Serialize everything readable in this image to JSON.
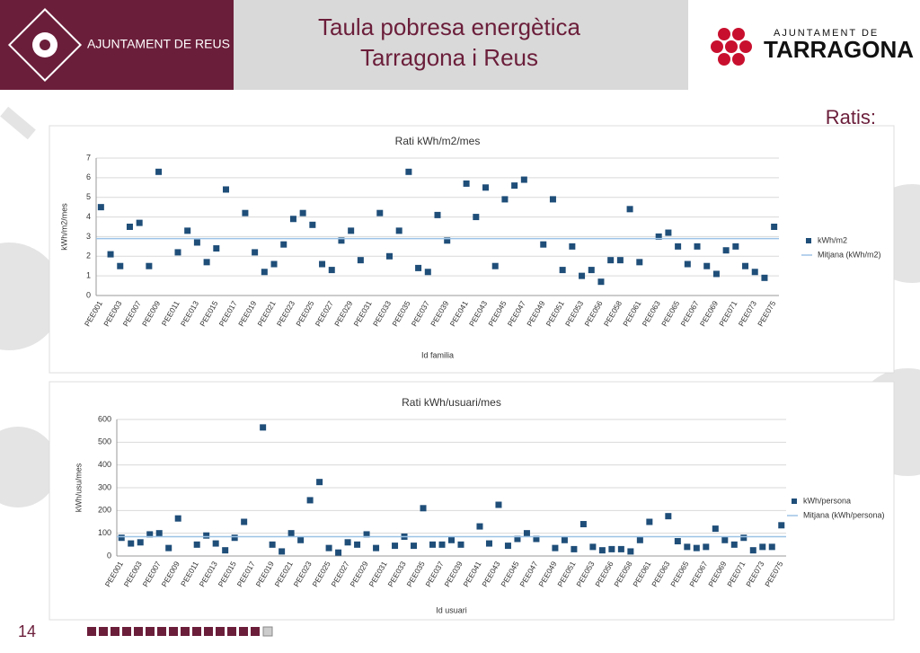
{
  "header": {
    "left_logo_text": "AJUNTAMENT DE REUS",
    "title_line1": "Taula pobresa energètica",
    "title_line2": "Tarragona i Reus",
    "right_logo_small": "AJUNTAMENT DE",
    "right_logo_big": "TARRAGONA"
  },
  "section_label": "Ratis:",
  "page_number": "14",
  "chart_data": [
    {
      "type": "scatter",
      "title": "Rati kWh/m2/mes",
      "x_label": "Id familia",
      "y_label": "kWh/m2/mes",
      "categories": [
        "PEE001",
        null,
        "PEE003",
        null,
        "PEE007",
        null,
        "PEE009",
        null,
        "PEE011",
        null,
        "PEE013",
        null,
        "PEE015",
        null,
        "PEE017",
        null,
        "PEE019",
        null,
        "PEE021",
        null,
        "PEE023",
        null,
        "PEE025",
        null,
        "PEE027",
        null,
        "PEE029",
        null,
        "PEE031",
        null,
        "PEE033",
        null,
        "PEE035",
        null,
        "PEE037",
        null,
        "PEE039",
        null,
        "PEE041",
        null,
        "PEE043",
        null,
        "PEE045",
        null,
        "PEE047",
        null,
        "PEE049",
        null,
        "PEE051",
        null,
        "PEE053",
        null,
        "PEE056",
        null,
        "PEE058",
        null,
        "PEE061",
        null,
        "PEE063",
        null,
        "PEE065",
        null,
        "PEE067",
        null,
        "PEE069",
        null,
        "PEE071",
        null,
        "PEE073",
        null,
        "PEE075"
      ],
      "series": [
        {
          "name": "kWh/m2",
          "color": "#1f4e79",
          "values": [
            4.5,
            2.1,
            1.5,
            3.5,
            3.7,
            1.5,
            6.3,
            null,
            2.2,
            3.3,
            2.7,
            1.7,
            2.4,
            5.4,
            null,
            4.2,
            2.2,
            1.2,
            1.6,
            2.6,
            3.9,
            4.2,
            3.6,
            1.6,
            1.3,
            2.8,
            3.3,
            1.8,
            null,
            4.2,
            2.0,
            3.3,
            6.3,
            1.4,
            1.2,
            4.1,
            2.8,
            null,
            5.7,
            4.0,
            5.5,
            1.5,
            4.9,
            5.6,
            5.9,
            null,
            2.6,
            4.9,
            1.3,
            2.5,
            1.0,
            1.3,
            0.7,
            1.8,
            1.8,
            4.4,
            1.7,
            null,
            3.0,
            3.2,
            2.5,
            1.6,
            2.5,
            1.5,
            1.1,
            2.3,
            2.5,
            1.5,
            1.2,
            0.9,
            3.5
          ]
        },
        {
          "name": "Mitjana (kWh/m2)",
          "color": "#9dc3e6",
          "value": 2.9
        }
      ],
      "ylim": [
        0,
        7
      ],
      "yticks": [
        0,
        1,
        2,
        3,
        4,
        5,
        6,
        7
      ],
      "grid": true,
      "legend": "right"
    },
    {
      "type": "scatter",
      "title": "Rati kWh/usuari/mes",
      "x_label": "Id usuari",
      "y_label": "kWh/usu/mes",
      "categories": [
        "PEE001",
        null,
        "PEE003",
        null,
        "PEE007",
        null,
        "PEE009",
        null,
        "PEE011",
        null,
        "PEE013",
        null,
        "PEE015",
        null,
        "PEE017",
        null,
        "PEE019",
        null,
        "PEE021",
        null,
        "PEE023",
        null,
        "PEE025",
        null,
        "PEE027",
        null,
        "PEE029",
        null,
        "PEE031",
        null,
        "PEE033",
        null,
        "PEE035",
        null,
        "PEE037",
        null,
        "PEE039",
        null,
        "PEE041",
        null,
        "PEE043",
        null,
        "PEE045",
        null,
        "PEE047",
        null,
        "PEE049",
        null,
        "PEE051",
        null,
        "PEE053",
        null,
        "PEE056",
        null,
        "PEE058",
        null,
        "PEE061",
        null,
        "PEE063",
        null,
        "PEE065",
        null,
        "PEE067",
        null,
        "PEE069",
        null,
        "PEE071",
        null,
        "PEE073",
        null,
        "PEE075"
      ],
      "series": [
        {
          "name": "kWh/persona",
          "color": "#1f4e79",
          "values": [
            80,
            55,
            60,
            95,
            100,
            35,
            165,
            null,
            50,
            90,
            55,
            25,
            80,
            150,
            null,
            565,
            50,
            20,
            100,
            70,
            245,
            325,
            35,
            15,
            60,
            50,
            95,
            35,
            null,
            45,
            85,
            45,
            210,
            50,
            50,
            70,
            50,
            null,
            130,
            55,
            225,
            45,
            75,
            100,
            75,
            null,
            35,
            70,
            30,
            140,
            40,
            25,
            30,
            30,
            20,
            70,
            150,
            null,
            175,
            65,
            40,
            35,
            40,
            120,
            70,
            50,
            80,
            25,
            40,
            40,
            135
          ]
        },
        {
          "name": "Mitjana (kWh/persona)",
          "color": "#9dc3e6",
          "value": 85
        }
      ],
      "ylim": [
        0,
        600
      ],
      "yticks": [
        0,
        100,
        200,
        300,
        400,
        500,
        600
      ],
      "grid": true,
      "legend": "right"
    }
  ]
}
